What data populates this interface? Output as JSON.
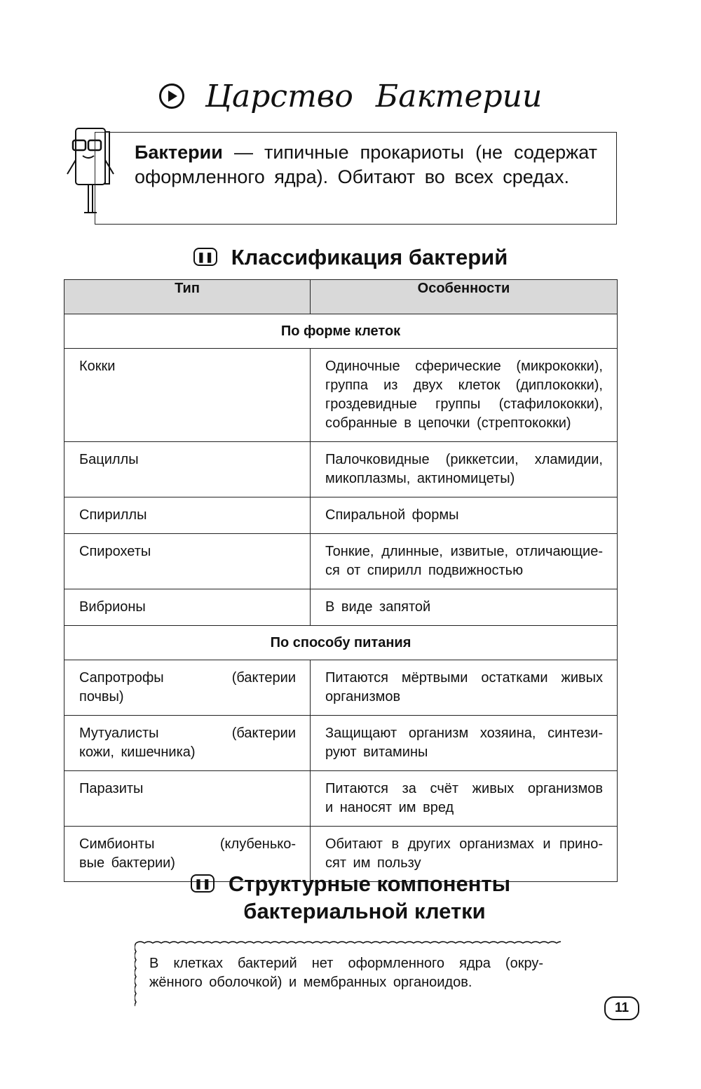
{
  "title": "Царство Бактерии",
  "definition": {
    "term": "Бактерии",
    "text": " — типичные прокариоты (не содержат оформленного ядра). Обитают во всех средах."
  },
  "section1_title": "Классификация бактерий",
  "table": {
    "headers": [
      "Тип",
      "Особенности"
    ],
    "rows": [
      {
        "section": "По форме клеток"
      },
      {
        "type": [
          "Кокки"
        ],
        "features": [
          "Одиночные сферические (микрококки),",
          "группа из двух клеток (диплококки),",
          "гроздевидные группы (стафилококки),",
          "собранные в цепочки (стрептококки)"
        ]
      },
      {
        "type": [
          "Бациллы"
        ],
        "features": [
          "Палочковидные (риккетсии, хламидии,",
          "микоплазмы, актиномицеты)"
        ]
      },
      {
        "type": [
          "Спириллы"
        ],
        "features": [
          "Спиральной формы"
        ]
      },
      {
        "type": [
          "Спирохеты"
        ],
        "features": [
          "Тонкие, длинные, извитые, отличающие-",
          "ся от спирилл подвижностью"
        ]
      },
      {
        "type": [
          "Вибрионы"
        ],
        "features": [
          "В виде запятой"
        ]
      },
      {
        "section": "По способу питания"
      },
      {
        "type": [
          "Сапротрофы (бактерии",
          "почвы)"
        ],
        "features": [
          "Питаются мёртвыми остатками живых",
          "организмов"
        ]
      },
      {
        "type": [
          "Мутуалисты (бактерии",
          "кожи, кишечника)"
        ],
        "features": [
          "Защищают организм хозяина, синтези-",
          "руют витамины"
        ]
      },
      {
        "type": [
          "Паразиты"
        ],
        "features": [
          "Питаются за счёт живых организмов",
          "и наносят им вред"
        ]
      },
      {
        "type": [
          "Симбионты (клубенько-",
          "вые бактерии)"
        ],
        "features": [
          "Обитают в других организмах и прино-",
          "сят им пользу"
        ]
      }
    ]
  },
  "section2_title_line1": "Структурные компоненты",
  "section2_title_line2": "бактериальной клетки",
  "note": [
    "В клетках бактерий нет оформленного ядра (окру-",
    "жённого оболочкой) и мембранных органоидов."
  ],
  "page_number": "11"
}
